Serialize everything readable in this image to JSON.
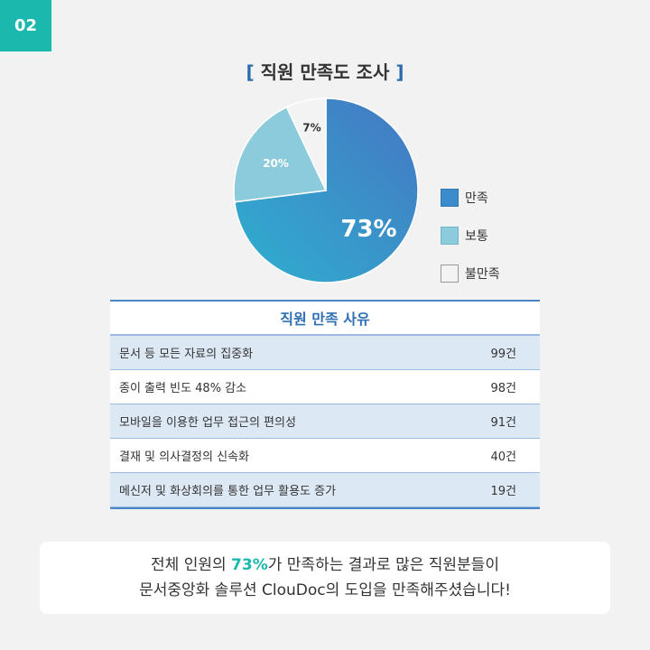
{
  "badge": "02",
  "chart_data": {
    "type": "pie",
    "title_bracket_open": "[",
    "title": "직원 만족도 조사",
    "title_bracket_close": "]",
    "slices": [
      {
        "label": "만족",
        "value": 73,
        "display": "73%",
        "color": "#3a8ccc"
      },
      {
        "label": "보통",
        "value": 20,
        "display": "20%",
        "color": "#8ccbdc"
      },
      {
        "label": "불만족",
        "value": 7,
        "display": "7%",
        "color": "#f3f3f3"
      }
    ],
    "legend_position": "right"
  },
  "table": {
    "title": "직원 만족 사유",
    "rows": [
      {
        "reason": "문서 등 모든 자료의 집중화",
        "count": "99건"
      },
      {
        "reason": "종이 출력 빈도 48% 감소",
        "count": "98건"
      },
      {
        "reason": "모바일을 이용한 업무 접근의 편의성",
        "count": "91건"
      },
      {
        "reason": "결재 및 의사결정의 신속화",
        "count": "40건"
      },
      {
        "reason": "메신저 및 화상회의를 통한 업무 활용도 증가",
        "count": "19건"
      }
    ]
  },
  "summary": {
    "line1_pre": "전체 인원의 ",
    "line1_highlight": "73%",
    "line1_post": "가 만족하는 결과로 많은 직원분들이",
    "line2": "문서중앙화 솔루션 ClouDoc의 도입을 만족해주셨습니다!"
  }
}
